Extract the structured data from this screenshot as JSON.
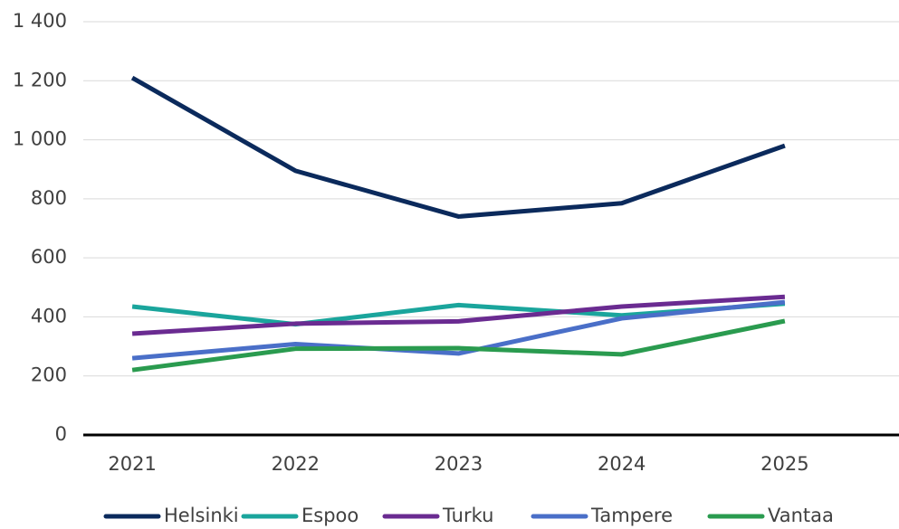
{
  "chart_data": {
    "type": "line",
    "categories": [
      "2021",
      "2022",
      "2023",
      "2024",
      "2025"
    ],
    "series": [
      {
        "name": "Helsinki",
        "color": "#0b2a5c",
        "values": [
          1210,
          895,
          740,
          785,
          980
        ]
      },
      {
        "name": "Espoo",
        "color": "#1aa59c",
        "values": [
          435,
          375,
          440,
          405,
          445
        ]
      },
      {
        "name": "Turku",
        "color": "#6a2b91",
        "values": [
          343,
          377,
          385,
          435,
          468
        ]
      },
      {
        "name": "Tampere",
        "color": "#4a6fc8",
        "values": [
          260,
          308,
          276,
          395,
          450
        ]
      },
      {
        "name": "Vantaa",
        "color": "#2a9b4f",
        "values": [
          220,
          292,
          294,
          273,
          386
        ]
      }
    ],
    "ylim": [
      0,
      1400
    ],
    "yticks": [
      0,
      200,
      400,
      600,
      800,
      {
        "value": 1000,
        "label": "1 000"
      },
      {
        "value": 1200,
        "label": "1 200"
      },
      {
        "value": 1400,
        "label": "1 400"
      }
    ],
    "grid": true,
    "legend": "bottom"
  }
}
